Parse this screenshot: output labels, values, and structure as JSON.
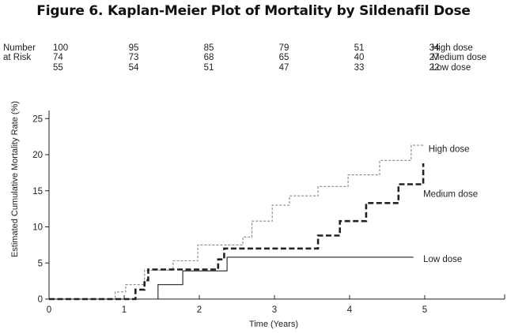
{
  "title": "Figure 6. Kaplan-Meier Plot of Mortality by Sildenafil Dose",
  "chart_data": {
    "type": "line",
    "step": true,
    "xlabel": "Time (Years)",
    "ylabel": "Estimated Cumulative Mortality Rate (%)",
    "xlim": [
      0,
      6
    ],
    "ylim": [
      0,
      27
    ],
    "x_ticks": [
      0,
      1,
      2,
      3,
      4,
      5
    ],
    "y_ticks": [
      0,
      5,
      10,
      15,
      20,
      25
    ],
    "grid": false,
    "risk_table": {
      "label_line1": "Number",
      "label_line2": "at Risk",
      "times": [
        0,
        1,
        2,
        3,
        4,
        5
      ],
      "rows": [
        {
          "name": "High dose",
          "values": [
            "100",
            "95",
            "85",
            "79",
            "51",
            "34"
          ]
        },
        {
          "name": "Medium dose",
          "values": [
            "74",
            "73",
            "68",
            "65",
            "40",
            "27"
          ]
        },
        {
          "name": "Low dose",
          "values": [
            "55",
            "54",
            "51",
            "47",
            "33",
            "22"
          ]
        }
      ]
    },
    "series": [
      {
        "name": "High dose",
        "style": "dotted",
        "color": "#888888",
        "label_at": [
          5.05,
          20.8
        ],
        "points": [
          [
            0,
            0
          ],
          [
            0.88,
            0
          ],
          [
            0.88,
            1
          ],
          [
            1.02,
            1
          ],
          [
            1.02,
            2
          ],
          [
            1.27,
            2
          ],
          [
            1.27,
            4
          ],
          [
            1.65,
            4
          ],
          [
            1.65,
            5.3
          ],
          [
            1.98,
            5.3
          ],
          [
            1.98,
            7.5
          ],
          [
            2.58,
            7.5
          ],
          [
            2.58,
            8.6
          ],
          [
            2.7,
            8.6
          ],
          [
            2.7,
            10.8
          ],
          [
            2.97,
            10.8
          ],
          [
            2.97,
            13
          ],
          [
            3.2,
            13
          ],
          [
            3.2,
            14.3
          ],
          [
            3.58,
            14.3
          ],
          [
            3.58,
            15.6
          ],
          [
            3.98,
            15.6
          ],
          [
            3.98,
            17.2
          ],
          [
            4.4,
            17.2
          ],
          [
            4.4,
            19.2
          ],
          [
            4.82,
            19.2
          ],
          [
            4.82,
            21.3
          ],
          [
            5.0,
            21.3
          ]
        ]
      },
      {
        "name": "Medium dose",
        "style": "dashed",
        "color": "#222222",
        "label_at": [
          4.98,
          14.6
        ],
        "points": [
          [
            0,
            0
          ],
          [
            1.15,
            0
          ],
          [
            1.15,
            1.3
          ],
          [
            1.27,
            1.3
          ],
          [
            1.27,
            2.6
          ],
          [
            1.32,
            2.6
          ],
          [
            1.32,
            4.1
          ],
          [
            2.25,
            4.1
          ],
          [
            2.25,
            5.5
          ],
          [
            2.33,
            5.5
          ],
          [
            2.33,
            7
          ],
          [
            3.58,
            7
          ],
          [
            3.58,
            8.8
          ],
          [
            3.87,
            8.8
          ],
          [
            3.87,
            10.8
          ],
          [
            4.22,
            10.8
          ],
          [
            4.22,
            13.3
          ],
          [
            4.65,
            13.3
          ],
          [
            4.65,
            15.9
          ],
          [
            4.98,
            15.9
          ],
          [
            4.98,
            18.8
          ]
        ]
      },
      {
        "name": "Low dose",
        "style": "solid",
        "color": "#222222",
        "label_at": [
          4.98,
          5.6
        ],
        "points": [
          [
            0,
            0
          ],
          [
            1.45,
            0
          ],
          [
            1.45,
            2
          ],
          [
            1.78,
            2
          ],
          [
            1.78,
            3.9
          ],
          [
            2.37,
            3.9
          ],
          [
            2.37,
            5.8
          ],
          [
            4.85,
            5.8
          ]
        ]
      }
    ]
  }
}
